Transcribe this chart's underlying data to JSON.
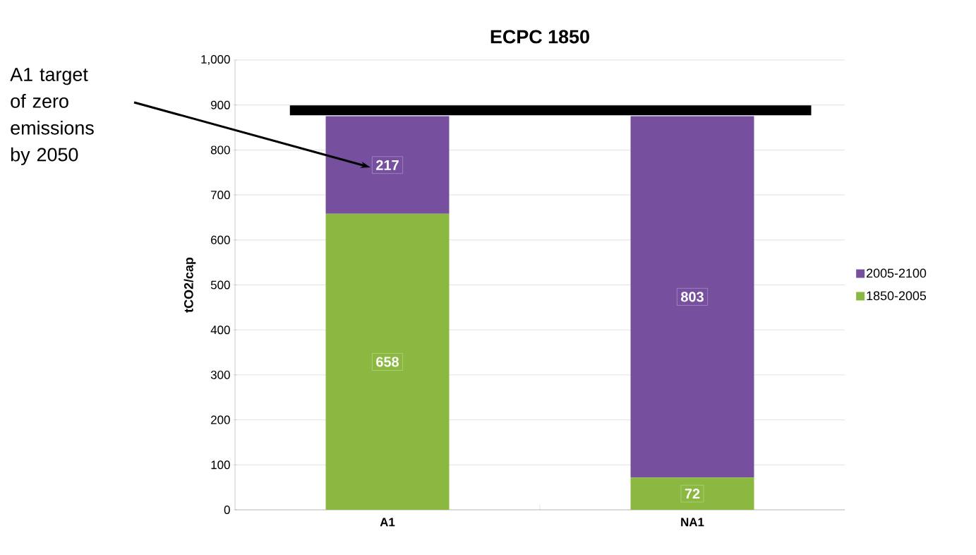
{
  "chart_data": {
    "type": "bar",
    "title": "ECPC 1850",
    "ylabel": "tCO2/cap",
    "categories": [
      "A1",
      "NA1"
    ],
    "series": [
      {
        "name": "1850-2005",
        "color": "#8ab840",
        "values": [
          658,
          72
        ]
      },
      {
        "name": "2005-2100",
        "color": "#76509e",
        "values": [
          217,
          803
        ]
      }
    ],
    "stacked": true,
    "data_labels": true,
    "ylim": [
      0,
      1000
    ],
    "yticks": [
      0,
      100,
      200,
      300,
      400,
      500,
      600,
      700,
      800,
      900,
      {
        "value": 1000,
        "label": "1,000"
      }
    ],
    "grid": "y",
    "legend": "right",
    "ref_lines": [
      {
        "axis": "y",
        "value": 888,
        "color": "#000000"
      }
    ],
    "annotations": [
      "A1 target of zero emissions by 2050"
    ]
  }
}
